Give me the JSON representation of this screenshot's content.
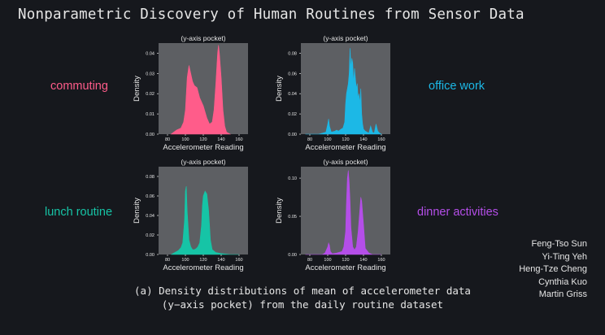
{
  "slide": {
    "title": "Nonparametric Discovery of Human Routines from Sensor Data",
    "caption_line1": "(a) Density distributions of mean of accelerometer data",
    "caption_line2": "(y−axis pocket) from the daily routine dataset",
    "authors": [
      "Feng-Tso Sun",
      "Yi-Ting Yeh",
      "Heng-Tze Cheng",
      "Cynthia Kuo",
      "Martin Griss"
    ]
  },
  "labels": {
    "commuting": {
      "text": "commuting",
      "color": "#ff5c8a"
    },
    "office_work": {
      "text": "office work",
      "color": "#1cb8e6"
    },
    "lunch_routine": {
      "text": "lunch routine",
      "color": "#16c4a6"
    },
    "dinner_activities": {
      "text": "dinner activities",
      "color": "#b44ee8"
    }
  },
  "chart_data": [
    {
      "type": "area",
      "title": "(y-axis pocket)",
      "xlabel": "Accelerometer Reading",
      "ylabel": "Density",
      "xlim": [
        70,
        170
      ],
      "ylim": [
        0,
        0.045
      ],
      "xticks": [
        80,
        100,
        120,
        140,
        160
      ],
      "yticks": [
        0.0,
        0.01,
        0.02,
        0.03,
        0.04
      ],
      "ytick_labels": [
        "0.00",
        "0.01",
        "0.02",
        "0.03",
        "0.04"
      ],
      "color": "#ff5c8a",
      "series": [
        {
          "x": [
            84,
            90,
            95,
            98,
            100,
            102,
            104,
            106,
            108,
            110,
            113,
            116,
            120,
            124,
            127,
            130,
            132,
            134,
            136,
            137,
            138,
            140,
            142,
            144,
            146,
            150
          ],
          "values": [
            0.0,
            0.002,
            0.003,
            0.006,
            0.012,
            0.028,
            0.034,
            0.03,
            0.026,
            0.024,
            0.023,
            0.018,
            0.014,
            0.008,
            0.005,
            0.006,
            0.012,
            0.025,
            0.04,
            0.044,
            0.04,
            0.028,
            0.012,
            0.004,
            0.001,
            0.0
          ]
        }
      ]
    },
    {
      "type": "area",
      "title": "(y-axis pocket)",
      "xlabel": "Accelerometer Reading",
      "ylabel": "Density",
      "xlim": [
        70,
        170
      ],
      "ylim": [
        0,
        0.09
      ],
      "xticks": [
        80,
        100,
        120,
        140,
        160
      ],
      "yticks": [
        0.0,
        0.02,
        0.04,
        0.06,
        0.08
      ],
      "ytick_labels": [
        "0.00",
        "0.02",
        "0.04",
        "0.06",
        "0.08"
      ],
      "color": "#1cb8e6",
      "series": [
        {
          "x": [
            75,
            90,
            98,
            100,
            101,
            102,
            104,
            108,
            110,
            112,
            115,
            117,
            119,
            120,
            121,
            122,
            123,
            124,
            125,
            126,
            127,
            128,
            129,
            130,
            131,
            132,
            133,
            134,
            135,
            136,
            137,
            138,
            139,
            140,
            142,
            144,
            146,
            148,
            150,
            152,
            154,
            156,
            158,
            160
          ],
          "values": [
            0.0,
            0.0,
            0.002,
            0.01,
            0.015,
            0.008,
            0.002,
            0.003,
            0.004,
            0.003,
            0.005,
            0.006,
            0.012,
            0.03,
            0.04,
            0.045,
            0.05,
            0.06,
            0.085,
            0.065,
            0.075,
            0.07,
            0.05,
            0.065,
            0.055,
            0.045,
            0.05,
            0.035,
            0.04,
            0.03,
            0.045,
            0.02,
            0.01,
            0.005,
            0.003,
            0.002,
            0.001,
            0.008,
            0.002,
            0.001,
            0.01,
            0.003,
            0.001,
            0.0
          ]
        }
      ]
    },
    {
      "type": "area",
      "title": "(y-axis pocket)",
      "xlabel": "Accelerometer Reading",
      "ylabel": "Density",
      "xlim": [
        70,
        170
      ],
      "ylim": [
        0,
        0.09
      ],
      "xticks": [
        80,
        100,
        120,
        140,
        160
      ],
      "yticks": [
        0.0,
        0.02,
        0.04,
        0.06,
        0.08
      ],
      "ytick_labels": [
        "0.00",
        "0.02",
        "0.04",
        "0.06",
        "0.08"
      ],
      "color": "#16c4a6",
      "series": [
        {
          "x": [
            84,
            88,
            92,
            95,
            97,
            99,
            100,
            101,
            102,
            104,
            106,
            108,
            110,
            112,
            114,
            116,
            118,
            119,
            120,
            122,
            124,
            126,
            128,
            130,
            134,
            140,
            150,
            160
          ],
          "values": [
            0.0,
            0.002,
            0.004,
            0.007,
            0.012,
            0.035,
            0.065,
            0.07,
            0.045,
            0.015,
            0.008,
            0.005,
            0.005,
            0.006,
            0.008,
            0.012,
            0.03,
            0.05,
            0.06,
            0.065,
            0.062,
            0.045,
            0.015,
            0.005,
            0.002,
            0.001,
            0.0,
            0.0
          ]
        }
      ]
    },
    {
      "type": "area",
      "title": "(y-axis pocket)",
      "xlabel": "Accelerometer Reading",
      "ylabel": "Density",
      "xlim": [
        70,
        170
      ],
      "ylim": [
        0,
        0.115
      ],
      "xticks": [
        80,
        100,
        120,
        140,
        160
      ],
      "yticks": [
        0.0,
        0.05,
        0.1
      ],
      "ytick_labels": [
        "0.00",
        "0.05",
        "0.10"
      ],
      "color": "#b44ee8",
      "series": [
        {
          "x": [
            75,
            94,
            97,
            100,
            101,
            102,
            103,
            105,
            110,
            116,
            118,
            120,
            121,
            122,
            123,
            124,
            125,
            126,
            128,
            130,
            132,
            134,
            136,
            137,
            138,
            140,
            142,
            146,
            150,
            160
          ],
          "values": [
            0.0,
            0.0,
            0.002,
            0.01,
            0.015,
            0.012,
            0.004,
            0.001,
            0.002,
            0.004,
            0.01,
            0.03,
            0.07,
            0.1,
            0.11,
            0.095,
            0.07,
            0.035,
            0.01,
            0.006,
            0.01,
            0.03,
            0.06,
            0.075,
            0.07,
            0.04,
            0.008,
            0.002,
            0.0,
            0.0
          ]
        }
      ]
    }
  ]
}
